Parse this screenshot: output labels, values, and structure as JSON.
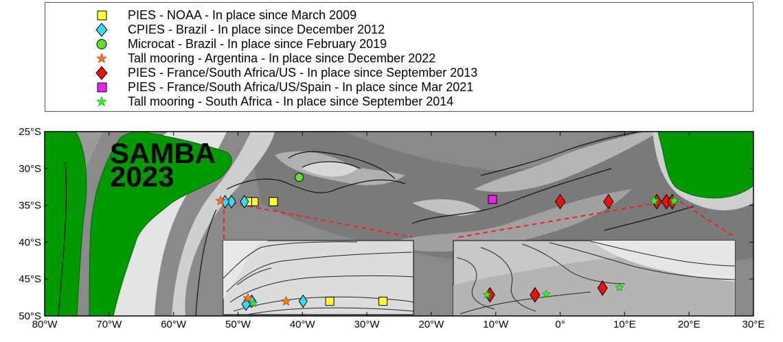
{
  "legend": [
    {
      "label": "PIES - NOAA - In place since March 2009",
      "symbol": "square",
      "color": "#ffff33"
    },
    {
      "label": "CPIES - Brazil - In place since December 2012",
      "symbol": "diamond",
      "color": "#33ddff"
    },
    {
      "label": "Microcat - Brazil - In place since February 2019",
      "symbol": "circle",
      "color": "#66dd33"
    },
    {
      "label": "Tall mooring - Argentina - In place since December 2022",
      "symbol": "star",
      "color": "#ff7722"
    },
    {
      "label": "PIES - France/South Africa/US - In place since September 2013",
      "symbol": "diamond",
      "color": "#ee1111"
    },
    {
      "label": "PIES - France/South Africa/US/Spain - In place since Mar 2021",
      "symbol": "square",
      "color": "#ee22ee"
    },
    {
      "label": "Tall mooring - South Africa - In place since September 2014",
      "symbol": "star",
      "color": "#33ee33"
    }
  ],
  "map": {
    "title_line1": "SAMBA",
    "title_line2": "2023",
    "lon_ticks": [
      "80°W",
      "70°W",
      "60°W",
      "50°W",
      "40°W",
      "30°W",
      "20°W",
      "10°W",
      "0°",
      "10°E",
      "20°E",
      "30°E"
    ],
    "lat_ticks": [
      "25°S",
      "30°S",
      "35°S",
      "40°S",
      "45°S",
      "50°S"
    ],
    "land_color": "#009900",
    "section_line_color": "#ee2222"
  },
  "instruments": {
    "pies_noaa": [
      [
        -44.5,
        -34.5
      ],
      [
        -47.5,
        -34.5
      ],
      [
        -48.5,
        -34.5
      ]
    ],
    "cpies_brazil": [
      [
        -49.0,
        -34.5
      ],
      [
        -51.0,
        -34.5
      ],
      [
        -52.0,
        -34.5
      ]
    ],
    "microcat_brazil": [
      [
        -40.5,
        -31.2
      ]
    ],
    "tall_argentina": [
      [
        -52.7,
        -34.4
      ]
    ],
    "pies_fr_sa_us": [
      [
        0.0,
        -34.5
      ],
      [
        7.5,
        -34.5
      ],
      [
        15.0,
        -34.5
      ],
      [
        16.5,
        -34.5
      ],
      [
        17.4,
        -34.5
      ]
    ],
    "pies_spain": [
      [
        -10.5,
        -34.2
      ]
    ],
    "tall_south_africa": [
      [
        14.6,
        -34.4
      ],
      [
        17.7,
        -34.4
      ]
    ]
  },
  "inset_west": {
    "pies_noaa": [
      [
        0.56,
        0.82
      ],
      [
        0.84,
        0.82
      ]
    ],
    "cpies_brazil": [
      [
        0.15,
        0.82
      ],
      [
        0.42,
        0.82
      ],
      [
        0.12,
        0.86
      ]
    ],
    "pies_fr_sa_us": [],
    "tall_argentina": [
      [
        0.13,
        0.78
      ],
      [
        0.33,
        0.82
      ]
    ],
    "tall_south_africa": [
      [
        0.16,
        0.85
      ]
    ]
  },
  "inset_east": {
    "pies_fr_sa_us": [
      [
        0.13,
        0.72
      ],
      [
        0.29,
        0.72
      ],
      [
        0.53,
        0.63
      ]
    ],
    "tall_south_africa": [
      [
        0.12,
        0.72
      ],
      [
        0.33,
        0.71
      ],
      [
        0.59,
        0.62
      ]
    ]
  }
}
